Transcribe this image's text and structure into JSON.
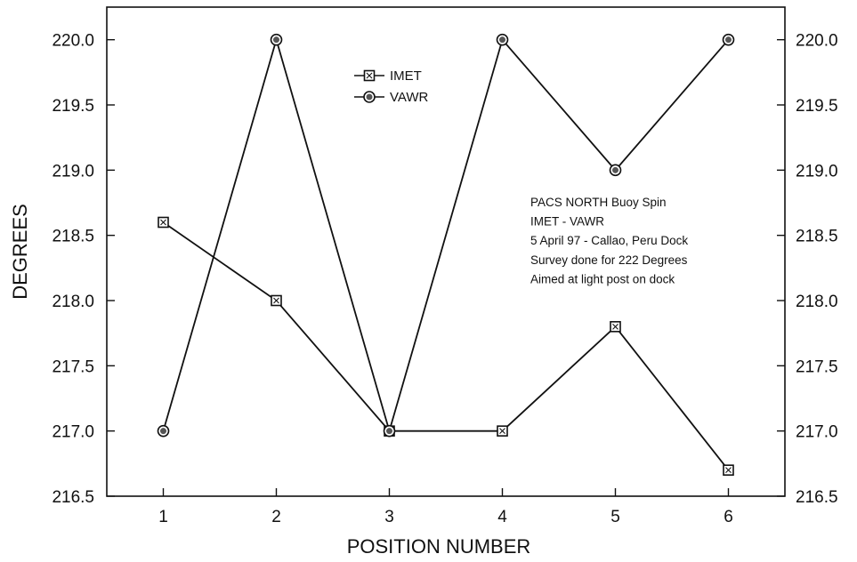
{
  "chart_data": {
    "type": "line",
    "title": "",
    "xlabel": "POSITION NUMBER",
    "ylabel": "DEGREES",
    "x": [
      1,
      2,
      3,
      4,
      5,
      6
    ],
    "xlim": [
      0.5,
      6.5
    ],
    "ylim": [
      216.5,
      220.25
    ],
    "x_ticks": [
      "1",
      "2",
      "3",
      "4",
      "5",
      "6"
    ],
    "y_ticks": [
      "216.5",
      "217.0",
      "217.5",
      "218.0",
      "218.5",
      "219.0",
      "219.5",
      "220.0"
    ],
    "right_y_ticks": [
      "216.5",
      "217.0",
      "217.5",
      "218.0",
      "218.5",
      "219.0",
      "219.5",
      "220.0"
    ],
    "grid": false,
    "legend_position": "top-center",
    "series": [
      {
        "name": "IMET",
        "marker": "square",
        "color": "#111111",
        "values": [
          218.6,
          218.0,
          217.0,
          217.0,
          217.8,
          216.7
        ]
      },
      {
        "name": "VAWR",
        "marker": "circle",
        "color": "#111111",
        "values": [
          217.0,
          220.0,
          217.0,
          220.0,
          219.0,
          220.0
        ]
      }
    ],
    "annotation": [
      "PACS NORTH  Buoy Spin",
      "IMET  -  VAWR",
      "5 April 97 - Callao, Peru    Dock",
      "Survey done for 222 Degrees",
      "Aimed at light post on dock"
    ]
  }
}
